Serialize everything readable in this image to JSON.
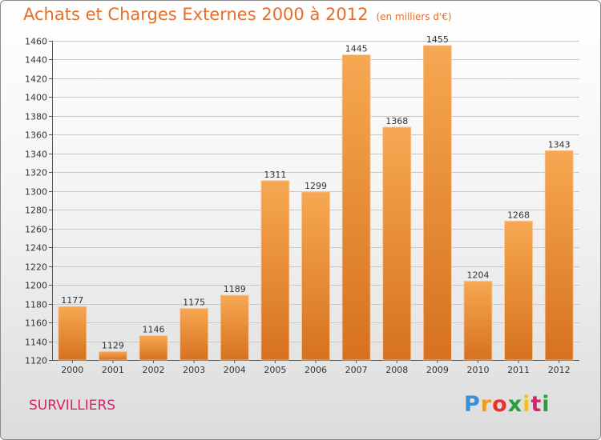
{
  "title": "Achats et Charges Externes 2000 à 2012",
  "subtitle": "(en milliers d'€)",
  "commune": "SURVILLIERS",
  "logo": "Proxiti",
  "colors": {
    "bar_light": "#f6a654",
    "bar_dark": "#d97322",
    "title": "#e46e2a",
    "commune": "#d6246a",
    "grid": "#c8c8c8"
  },
  "chart_data": {
    "type": "bar",
    "categories": [
      "2000",
      "2001",
      "2002",
      "2003",
      "2004",
      "2005",
      "2006",
      "2007",
      "2008",
      "2009",
      "2010",
      "2011",
      "2012"
    ],
    "values": [
      1177,
      1129,
      1146,
      1175,
      1189,
      1311,
      1299,
      1445,
      1368,
      1455,
      1204,
      1268,
      1343
    ],
    "title": "Achats et Charges Externes 2000 à 2012",
    "subtitle": "(en milliers d'€)",
    "ylim": [
      1120,
      1460
    ],
    "yticks": [
      1120,
      1140,
      1160,
      1180,
      1200,
      1220,
      1240,
      1260,
      1280,
      1300,
      1320,
      1340,
      1360,
      1380,
      1400,
      1420,
      1440,
      1460
    ],
    "grid": true,
    "data_labels": true
  }
}
